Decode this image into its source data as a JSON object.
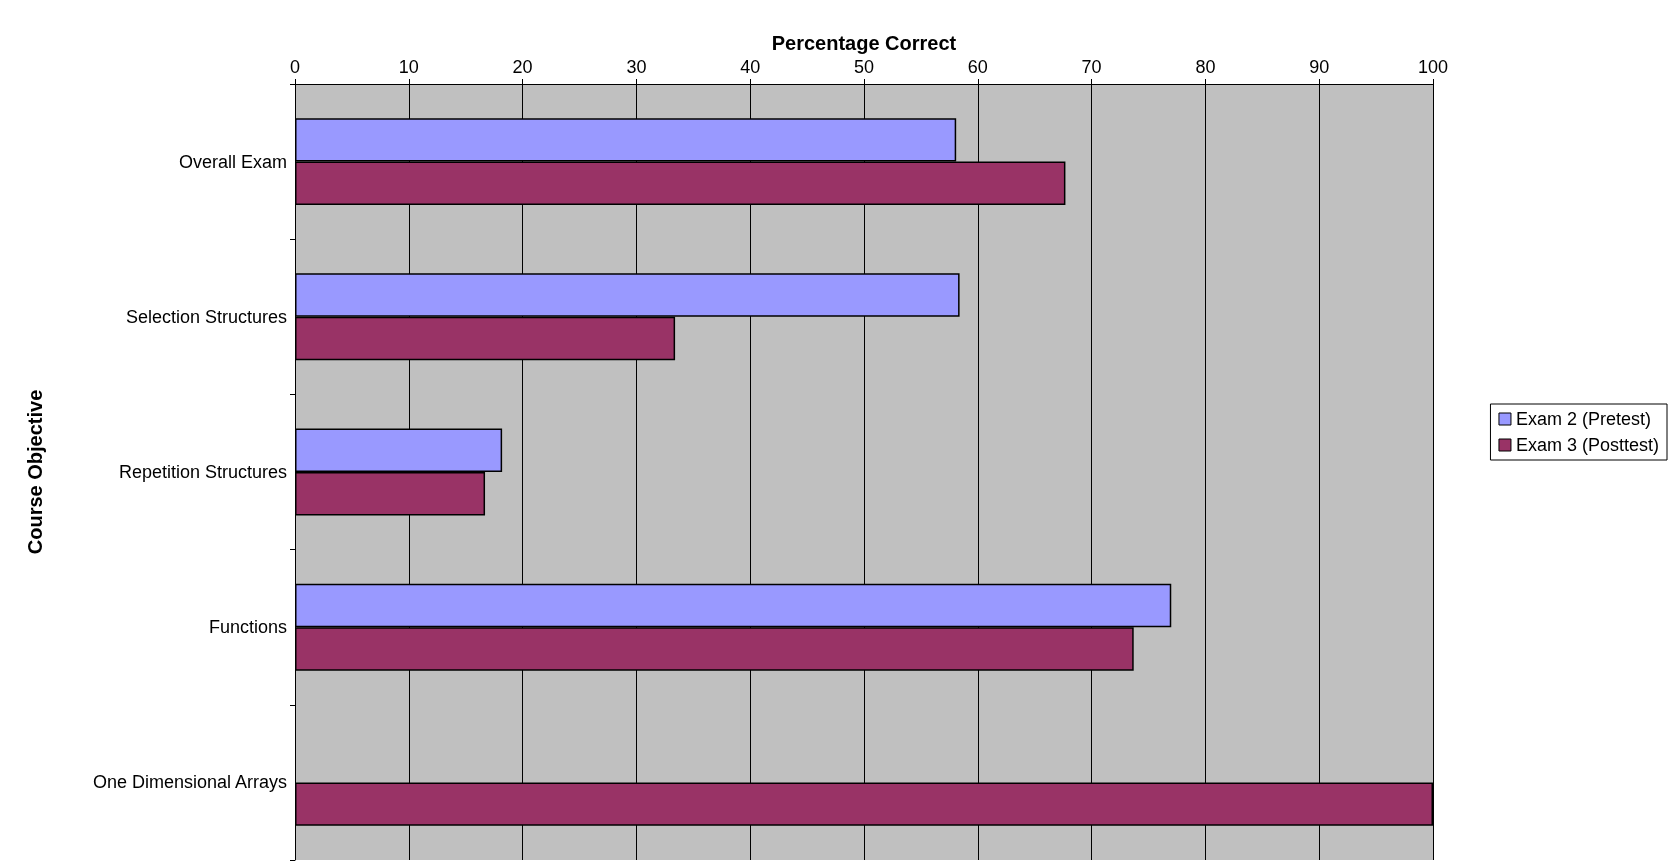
{
  "chart_data": {
    "type": "bar",
    "orientation": "horizontal",
    "xlabel": "Percentage Correct",
    "ylabel": "Course Objective",
    "categories": [
      "Overall Exam",
      "Selection Structures",
      "Repetition Structures",
      "Functions",
      "One Dimensional Arrays"
    ],
    "series": [
      {
        "name": "Exam 2 (Pretest)",
        "color": "#9999ff",
        "values": [
          58.1,
          58.4,
          18.2,
          77.0,
          null
        ]
      },
      {
        "name": "Exam 3 (Posttest)",
        "color": "#993366",
        "values": [
          67.7,
          33.4,
          16.7,
          73.7,
          100
        ]
      }
    ],
    "xlim": [
      0,
      100
    ],
    "xticks": [
      0,
      10,
      20,
      30,
      40,
      50,
      60,
      70,
      80,
      90,
      100
    ],
    "grid": "x",
    "legend": "right"
  }
}
